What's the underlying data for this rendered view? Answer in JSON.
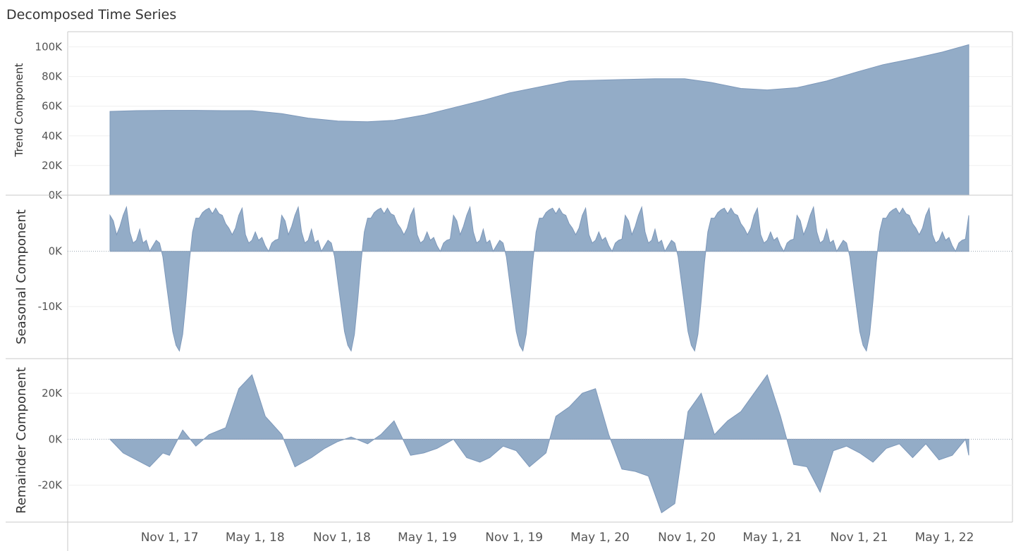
{
  "title": "Decomposed Time Series",
  "colors": {
    "area_fill": "#93acc7",
    "area_stroke": "#7d98ba",
    "axis": "#c8c8c8",
    "grid": "#efefef",
    "zero_line": "#9aa5b3"
  },
  "chart_data": [
    {
      "type": "area",
      "ylabel": "Trend Component",
      "ylim": [
        0,
        105000
      ],
      "yticks": [
        0,
        20000,
        40000,
        60000,
        80000,
        100000
      ],
      "ytick_labels": [
        "0K",
        "20K",
        "40K",
        "60K",
        "80K",
        "100K"
      ],
      "date_range": [
        "2017-07-08",
        "2022-07-02"
      ],
      "x": [
        "2017-07-08",
        "2017-09-02",
        "2017-11-04",
        "2018-01-06",
        "2018-03-03",
        "2018-05-05",
        "2018-07-07",
        "2018-09-01",
        "2018-11-03",
        "2019-01-05",
        "2019-03-02",
        "2019-05-04",
        "2019-07-06",
        "2019-09-07",
        "2019-11-02",
        "2020-01-04",
        "2020-03-07",
        "2020-05-02",
        "2020-07-04",
        "2020-09-05",
        "2020-11-07",
        "2021-01-02",
        "2021-03-06",
        "2021-05-01",
        "2021-07-03",
        "2021-09-04",
        "2021-11-06",
        "2022-01-01",
        "2022-03-05",
        "2022-05-07",
        "2022-07-02"
      ],
      "values": [
        56500,
        57000,
        57200,
        57200,
        57000,
        57000,
        55000,
        52000,
        50000,
        49500,
        50500,
        54000,
        59000,
        64000,
        69000,
        73000,
        77000,
        77500,
        78000,
        78500,
        78500,
        76000,
        72000,
        71000,
        72500,
        77000,
        83000,
        88000,
        92000,
        96500,
        101500
      ]
    },
    {
      "type": "area",
      "ylabel": "Seasonal Component",
      "ylim": [
        -18000,
        9000
      ],
      "yticks": [
        0,
        -10000
      ],
      "ytick_labels": [
        "0K",
        "-10K"
      ],
      "date_range": [
        "2017-07-08",
        "2022-07-02"
      ],
      "cycle_start": "2017-07-08",
      "cycle_weeks": 52,
      "cycle_values": [
        6500,
        5500,
        3000,
        4500,
        6500,
        8000,
        3500,
        1500,
        2000,
        4000,
        1500,
        2000,
        0,
        1000,
        2000,
        1500,
        -1000,
        -5500,
        -10000,
        -14500,
        -17000,
        -18000,
        -15000,
        -9000,
        -2000,
        3500,
        6000,
        6000,
        7000,
        7500,
        7800,
        6800,
        7800,
        6800,
        6500,
        5000,
        4200,
        3000,
        4200,
        6500,
        7800,
        3000,
        1500,
        2000,
        3500,
        2000,
        2500,
        1000,
        0,
        1500,
        2000,
        2200
      ]
    },
    {
      "type": "area",
      "ylabel": "Remainder Component",
      "ylim": [
        -33000,
        32000
      ],
      "yticks": [
        -20000,
        0,
        20000
      ],
      "ytick_labels": [
        "-20K",
        "0K",
        "20K"
      ],
      "date_range": [
        "2017-07-08",
        "2022-07-02"
      ],
      "x": [
        "2017-07-08",
        "2017-08-05",
        "2017-09-02",
        "2017-09-30",
        "2017-10-28",
        "2017-11-11",
        "2017-12-09",
        "2018-01-06",
        "2018-02-03",
        "2018-03-10",
        "2018-04-07",
        "2018-05-05",
        "2018-06-02",
        "2018-07-07",
        "2018-08-04",
        "2018-09-08",
        "2018-10-06",
        "2018-11-03",
        "2018-12-01",
        "2019-01-05",
        "2019-02-02",
        "2019-03-02",
        "2019-04-06",
        "2019-05-04",
        "2019-06-01",
        "2019-07-06",
        "2019-08-03",
        "2019-08-31",
        "2019-09-21",
        "2019-10-19",
        "2019-11-16",
        "2019-12-14",
        "2020-01-18",
        "2020-02-08",
        "2020-03-07",
        "2020-04-04",
        "2020-05-02",
        "2020-05-30",
        "2020-06-27",
        "2020-07-25",
        "2020-08-22",
        "2020-09-19",
        "2020-10-17",
        "2020-11-14",
        "2020-12-12",
        "2021-01-09",
        "2021-02-06",
        "2021-03-06",
        "2021-04-03",
        "2021-05-01",
        "2021-05-29",
        "2021-06-26",
        "2021-07-24",
        "2021-08-21",
        "2021-09-18",
        "2021-10-16",
        "2021-11-13",
        "2021-12-11",
        "2022-01-08",
        "2022-02-05",
        "2022-03-05",
        "2022-04-02",
        "2022-04-30",
        "2022-05-28",
        "2022-06-25",
        "2022-07-02"
      ],
      "values": [
        0,
        -6000,
        -9000,
        -12000,
        -6000,
        -7000,
        4000,
        -3000,
        2000,
        5000,
        22000,
        28000,
        10000,
        2000,
        -12000,
        -8000,
        -4000,
        -1000,
        1000,
        -2000,
        2000,
        8000,
        -7000,
        -6000,
        -4000,
        0,
        -8000,
        -10000,
        -8000,
        -3000,
        -5000,
        -12000,
        -6000,
        10000,
        14000,
        20000,
        22000,
        2000,
        -13000,
        -14000,
        -16000,
        -32000,
        -28000,
        12000,
        20000,
        2000,
        8000,
        12000,
        20000,
        28000,
        10000,
        -11000,
        -12000,
        -23000,
        -5000,
        -3000,
        -6000,
        -10000,
        -4000,
        -2000,
        -8000,
        -2000,
        -9000,
        -7000,
        0,
        -7000
      ]
    }
  ],
  "x_ticks": {
    "dates": [
      "2017-11-01",
      "2018-05-01",
      "2018-11-01",
      "2019-05-01",
      "2019-11-01",
      "2020-05-01",
      "2020-11-01",
      "2021-05-01",
      "2021-11-01",
      "2022-05-01"
    ],
    "labels": [
      "Nov 1, 17",
      "May 1, 18",
      "Nov 1, 18",
      "May 1, 19",
      "Nov 1, 19",
      "May 1, 20",
      "Nov 1, 20",
      "May 1, 21",
      "Nov 1, 21",
      "May 1, 22"
    ]
  }
}
